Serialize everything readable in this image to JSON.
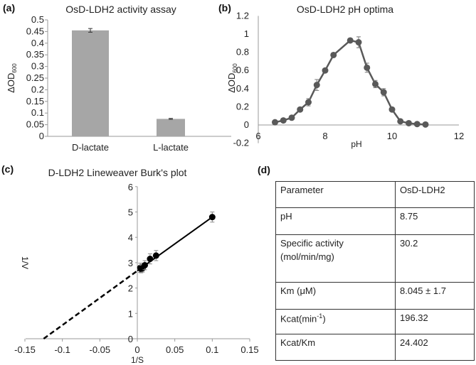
{
  "chart_data": [
    {
      "panel": "(a)",
      "type": "bar",
      "title": "OsD-LDH2 activity assay",
      "ylabel": "ΔOD600",
      "ylabel_main": "ΔOD",
      "ylabel_sub": "600",
      "xlabel": "",
      "categories": [
        "D-lactate",
        "L-lactate"
      ],
      "values": [
        0.455,
        0.075
      ],
      "errors": [
        0.008,
        0.002
      ],
      "ylim": [
        0,
        0.5
      ],
      "yticks": [
        "0",
        "0.05",
        "0.1",
        "0.15",
        "0.2",
        "0.25",
        "0.3",
        "0.35",
        "0.4",
        "0.45",
        "0.5"
      ],
      "color": "#a6a6a6"
    },
    {
      "panel": "(b)",
      "type": "line",
      "title": "OsD-LDH2 pH optima",
      "xlabel": "pH",
      "ylabel": "ΔOD600",
      "ylabel_main": "ΔOD",
      "ylabel_sub": "600",
      "x": [
        6.5,
        6.75,
        7,
        7.25,
        7.5,
        7.75,
        8,
        8.25,
        8.75,
        9,
        9.25,
        9.5,
        9.75,
        10,
        10.25,
        10.5,
        10.75,
        11
      ],
      "y": [
        0.03,
        0.05,
        0.08,
        0.17,
        0.25,
        0.44,
        0.6,
        0.77,
        0.93,
        0.91,
        0.63,
        0.45,
        0.36,
        0.17,
        0.04,
        0.02,
        0.01,
        0.005
      ],
      "errors": [
        0.01,
        0.01,
        0.01,
        0.02,
        0.04,
        0.06,
        0.02,
        0.02,
        0.01,
        0.06,
        0.05,
        0.04,
        0.04,
        0.01,
        0.01,
        0.01,
        0.01,
        0.01
      ],
      "xlim": [
        6,
        12
      ],
      "ylim": [
        -0.2,
        1.2
      ],
      "xticks": [
        "6",
        "8",
        "10",
        "12"
      ],
      "yticks": [
        "-0.2",
        "0",
        "0.2",
        "0.4",
        "0.6",
        "0.8",
        "1",
        "1.2"
      ],
      "color": "#595959"
    },
    {
      "panel": "(c)",
      "type": "scatter",
      "title": "D-LDH2 Lineweaver Burk's plot",
      "xlabel": "1/S",
      "ylabel": "1/V",
      "x": [
        0.004,
        0.005,
        0.007,
        0.01,
        0.017,
        0.025,
        0.1
      ],
      "y": [
        2.8,
        2.75,
        2.78,
        2.9,
        3.15,
        3.28,
        4.8
      ],
      "errors": [
        0.18,
        0.15,
        0.15,
        0.18,
        0.2,
        0.2,
        0.2
      ],
      "fit": {
        "slope": 21.2,
        "intercept": 2.68,
        "x_intercept": -0.125
      },
      "xlim": [
        -0.15,
        0.15
      ],
      "ylim": [
        0,
        6
      ],
      "xticks": [
        "-0.15",
        "-0.1",
        "-0.05",
        "0",
        "0.05",
        "0.1",
        "0.15"
      ],
      "yticks": [
        "0",
        "1",
        "2",
        "3",
        "4",
        "5",
        "6"
      ]
    },
    {
      "panel": "(d)",
      "type": "table",
      "headers": [
        "Parameter",
        "OsD-LDH2"
      ],
      "rows": [
        [
          "pH",
          "8.75"
        ],
        [
          "Specific activity (mol/min/mg)",
          "30.2"
        ],
        [
          "Km (μM)",
          "8.045 ± 1.7"
        ],
        [
          "Kcat(min-1)",
          "196.32"
        ],
        [
          "Kcat/Km",
          "24.402"
        ]
      ]
    }
  ],
  "labels": {
    "a": "(a)",
    "b": "(b)",
    "c": "(c)",
    "d": "(d)"
  },
  "table": {
    "h0": "Parameter",
    "h1": "OsD-LDH2",
    "r0": "pH",
    "v0": "8.75",
    "r1a": "Specific activity",
    "r1b": "(mol/min/mg)",
    "v1": "30.2",
    "r2": "Km (μM)",
    "v2": "8.045 ± 1.7",
    "r3": "Kcat(min",
    "r3sup": "-1",
    "r3end": ")",
    "v3": "196.32",
    "r4": "Kcat/Km",
    "v4": "24.402"
  }
}
